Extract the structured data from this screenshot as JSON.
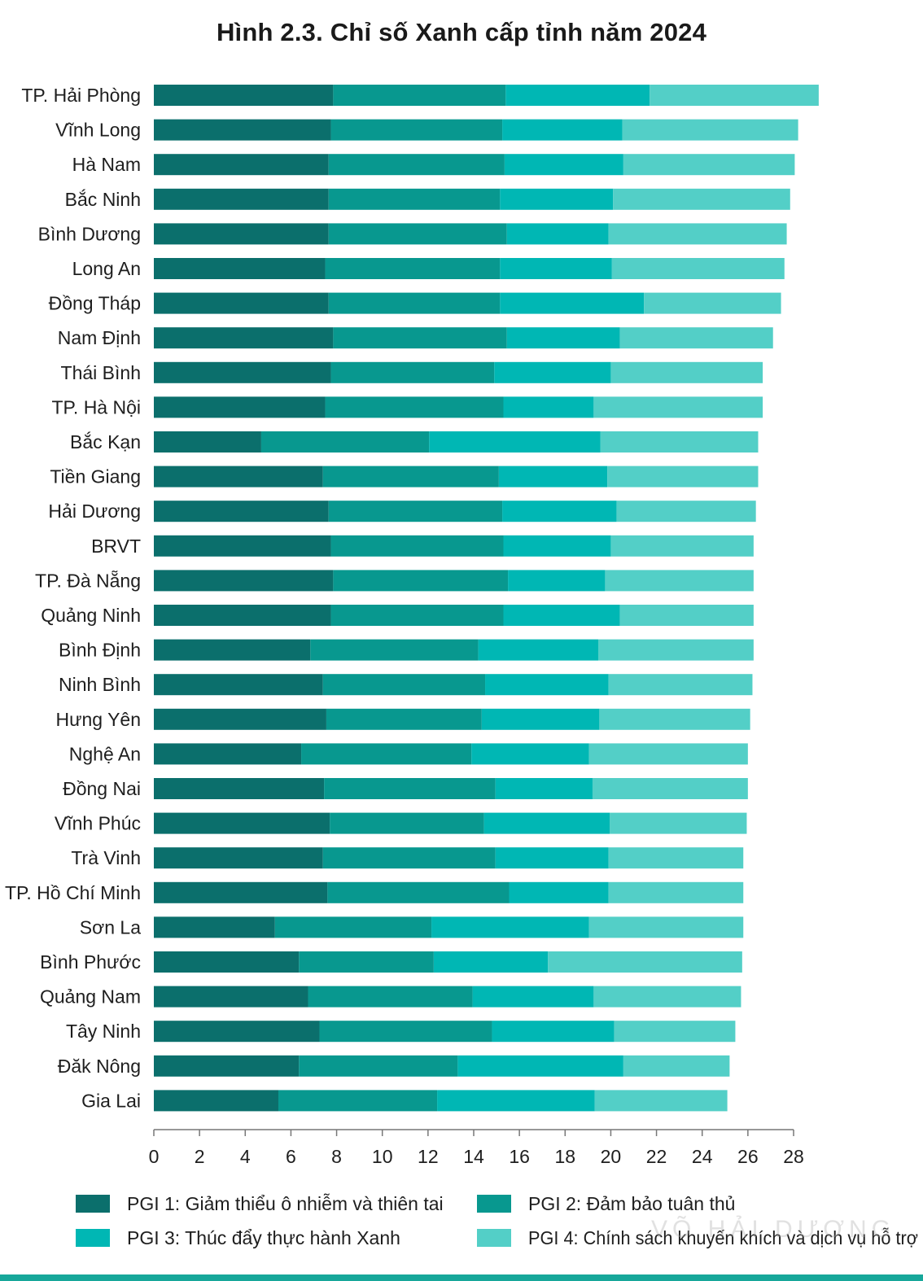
{
  "chart_data": {
    "type": "bar",
    "orientation": "horizontal",
    "stacked": true,
    "title": "Hình 2.3. Chỉ số Xanh cấp tỉnh năm 2024",
    "xlabel": "",
    "ylabel": "",
    "xlim": [
      0,
      28
    ],
    "xticks": [
      0,
      2,
      4,
      6,
      8,
      10,
      12,
      14,
      16,
      18,
      20,
      22,
      24,
      26,
      28
    ],
    "grid": false,
    "legend_position": "bottom",
    "categories": [
      "TP. Hải Phòng",
      "Vĩnh Long",
      "Hà Nam",
      "Bắc Ninh",
      "Bình Dương",
      "Long An",
      "Đồng Tháp",
      "Nam Định",
      "Thái Bình",
      "TP. Hà Nội",
      "Bắc Kạn",
      "Tiền Giang",
      "Hải Dương",
      "BRVT",
      "TP. Đà Nẵng",
      "Quảng Ninh",
      "Bình Định",
      "Ninh Bình",
      "Hưng Yên",
      "Nghệ An",
      "Đồng Nai",
      "Vĩnh Phúc",
      "Trà Vinh",
      "TP. Hồ Chí Minh",
      "Sơn La",
      "Bình Phước",
      "Quảng Nam",
      "Tây Ninh",
      "Đăk Nông",
      "Gia Lai"
    ],
    "series": [
      {
        "name": "PGI 1: Giảm thiểu ô nhiễm và thiên tai",
        "color": "#0b6f6c",
        "values": [
          7.85,
          7.75,
          7.65,
          7.65,
          7.65,
          7.5,
          7.65,
          7.85,
          7.75,
          7.5,
          4.7,
          7.4,
          7.65,
          7.75,
          7.85,
          7.75,
          6.85,
          7.4,
          7.55,
          6.45,
          7.45,
          7.7,
          7.4,
          7.6,
          5.3,
          6.35,
          6.75,
          7.25,
          6.35,
          5.45
        ]
      },
      {
        "name": "PGI 2: Đảm bảo tuân thủ",
        "color": "#08988f",
        "values": [
          7.55,
          7.5,
          7.7,
          7.5,
          7.8,
          7.65,
          7.5,
          7.6,
          7.15,
          7.8,
          7.35,
          7.7,
          7.6,
          7.55,
          7.65,
          7.55,
          7.35,
          7.1,
          6.8,
          7.45,
          7.5,
          6.75,
          7.55,
          7.95,
          6.85,
          5.9,
          7.2,
          7.55,
          6.95,
          6.95
        ]
      },
      {
        "name": "PGI 3: Thúc đẩy thực hành Xanh",
        "color": "#00b7b4",
        "values": [
          6.3,
          5.25,
          5.2,
          4.95,
          4.45,
          4.9,
          6.3,
          4.95,
          5.1,
          3.95,
          7.5,
          4.75,
          5.0,
          4.7,
          4.25,
          5.1,
          5.25,
          5.4,
          5.15,
          5.15,
          4.25,
          5.5,
          4.95,
          4.35,
          6.9,
          5.0,
          5.3,
          5.35,
          7.25,
          6.9
        ]
      },
      {
        "name": "PGI 4: Chính sách khuyến khích và dịch vụ hỗ trợ",
        "color": "#53cfc7",
        "values": [
          7.4,
          7.7,
          7.5,
          7.75,
          7.8,
          7.55,
          6.0,
          6.7,
          6.65,
          7.4,
          6.9,
          6.6,
          6.1,
          6.25,
          6.5,
          5.85,
          6.8,
          6.3,
          6.6,
          6.95,
          6.8,
          6.0,
          5.9,
          5.9,
          6.75,
          8.5,
          6.45,
          5.3,
          4.65,
          5.8
        ]
      }
    ]
  },
  "watermark": "VÕ HẢI DƯƠNG"
}
